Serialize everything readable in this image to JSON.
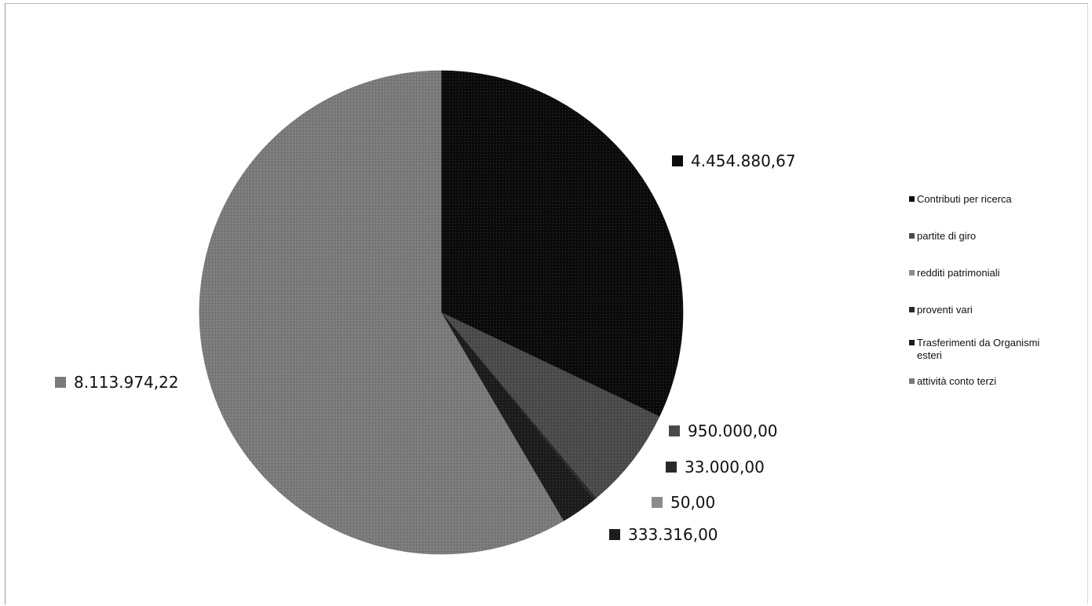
{
  "chart_data": {
    "type": "pie",
    "title": "",
    "legend_position": "right",
    "slices": [
      {
        "name": "Contributi per ricerca",
        "value": 4454880.67,
        "label": "4.454.880,67",
        "color": "#0b0b0b",
        "legend_lines": [
          "Contributi per ricerca"
        ]
      },
      {
        "name": "partite di giro",
        "value": 950000.0,
        "label": "950.000,00",
        "color": "#4a4a4a",
        "legend_lines": [
          "partite di giro"
        ]
      },
      {
        "name": "redditi patrimoniali",
        "value": 50.0,
        "label": "50,00",
        "color": "#8c8c8c",
        "legend_lines": [
          "redditi patrimoniali"
        ]
      },
      {
        "name": "proventi vari",
        "value": 33000.0,
        "label": "33.000,00",
        "color": "#2a2a2a",
        "legend_lines": [
          "proventi vari"
        ]
      },
      {
        "name": "Trasferimenti da Organismi esteri",
        "value": 333316.0,
        "label": "333.316,00",
        "color": "#1c1c1c",
        "legend_lines": [
          "Trasferimenti da Organismi",
          "esteri"
        ]
      },
      {
        "name": "attività conto terzi",
        "value": 8113974.22,
        "label": "8.113.974,22",
        "color": "#7a7a7a",
        "legend_lines": [
          "attività conto terzi"
        ]
      }
    ]
  }
}
